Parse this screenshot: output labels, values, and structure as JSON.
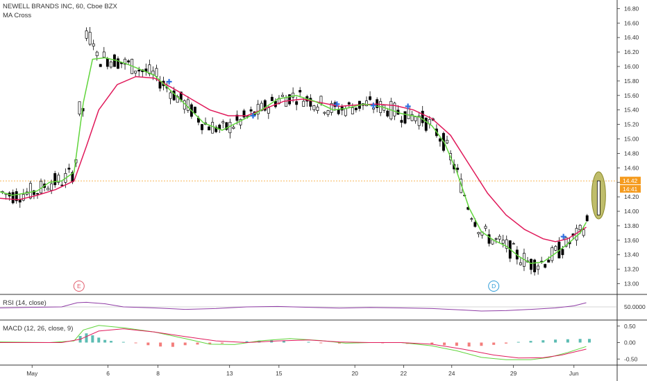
{
  "chart_data": {
    "type": "candlestick",
    "title": "NEWELL BRANDS INC, 60, Cboe BZX",
    "indicator_label": "MA Cross",
    "x_tick_labels": [
      "May",
      "6",
      "8",
      "13",
      "15",
      "20",
      "22",
      "24",
      "29",
      "Jun"
    ],
    "price_ticks": [
      "16.80",
      "16.60",
      "16.40",
      "16.20",
      "16.00",
      "15.80",
      "15.60",
      "15.40",
      "15.20",
      "15.00",
      "14.80",
      "14.60",
      "14.40",
      "14.20",
      "14.00",
      "13.80",
      "13.60",
      "13.40",
      "13.20",
      "13.00"
    ],
    "ylim": [
      12.9,
      16.88
    ],
    "last_price_label": "14.42",
    "time_label": "14:41",
    "grid": false,
    "colors": {
      "up": "#ffffff",
      "down": "#000000",
      "fast_ma": "#5fd43a",
      "slow_ma": "#e0195a",
      "cross_marker": "#2f6fe0",
      "rsi_line": "#8e3ba5",
      "macd_line": "#5fd43a",
      "signal_line": "#e0195a",
      "last_price": "#f59b1e",
      "highlight": "#aaa73a"
    },
    "events": [
      {
        "label": "E",
        "color": "#e05a6a",
        "x": 0.128
      },
      {
        "label": "D",
        "color": "#2d9cd8",
        "x": 0.8
      }
    ],
    "fast_ma": [
      [
        0,
        14.27
      ],
      [
        0.02,
        14.22
      ],
      [
        0.04,
        14.25
      ],
      [
        0.06,
        14.28
      ],
      [
        0.08,
        14.4
      ],
      [
        0.1,
        14.42
      ],
      [
        0.12,
        14.54
      ],
      [
        0.135,
        15.5
      ],
      [
        0.15,
        16.1
      ],
      [
        0.17,
        16.12
      ],
      [
        0.19,
        16.08
      ],
      [
        0.21,
        16.02
      ],
      [
        0.23,
        15.95
      ],
      [
        0.25,
        15.88
      ],
      [
        0.27,
        15.72
      ],
      [
        0.3,
        15.48
      ],
      [
        0.33,
        15.22
      ],
      [
        0.36,
        15.12
      ],
      [
        0.39,
        15.25
      ],
      [
        0.42,
        15.38
      ],
      [
        0.45,
        15.55
      ],
      [
        0.48,
        15.6
      ],
      [
        0.51,
        15.52
      ],
      [
        0.54,
        15.4
      ],
      [
        0.56,
        15.42
      ],
      [
        0.59,
        15.48
      ],
      [
        0.62,
        15.44
      ],
      [
        0.65,
        15.35
      ],
      [
        0.68,
        15.3
      ],
      [
        0.7,
        15.18
      ],
      [
        0.72,
        14.95
      ],
      [
        0.74,
        14.55
      ],
      [
        0.76,
        14.05
      ],
      [
        0.78,
        13.72
      ],
      [
        0.8,
        13.6
      ],
      [
        0.82,
        13.52
      ],
      [
        0.84,
        13.38
      ],
      [
        0.86,
        13.28
      ],
      [
        0.88,
        13.3
      ],
      [
        0.9,
        13.42
      ],
      [
        0.92,
        13.55
      ],
      [
        0.94,
        13.7
      ],
      [
        0.95,
        13.85
      ]
    ],
    "slow_ma": [
      [
        0,
        14.18
      ],
      [
        0.03,
        14.16
      ],
      [
        0.06,
        14.22
      ],
      [
        0.09,
        14.3
      ],
      [
        0.12,
        14.42
      ],
      [
        0.14,
        14.9
      ],
      [
        0.16,
        15.4
      ],
      [
        0.19,
        15.75
      ],
      [
        0.22,
        15.86
      ],
      [
        0.25,
        15.84
      ],
      [
        0.28,
        15.7
      ],
      [
        0.31,
        15.55
      ],
      [
        0.34,
        15.4
      ],
      [
        0.37,
        15.32
      ],
      [
        0.4,
        15.32
      ],
      [
        0.43,
        15.42
      ],
      [
        0.46,
        15.52
      ],
      [
        0.49,
        15.55
      ],
      [
        0.52,
        15.5
      ],
      [
        0.55,
        15.45
      ],
      [
        0.58,
        15.47
      ],
      [
        0.61,
        15.48
      ],
      [
        0.64,
        15.46
      ],
      [
        0.67,
        15.4
      ],
      [
        0.7,
        15.28
      ],
      [
        0.73,
        15.05
      ],
      [
        0.76,
        14.65
      ],
      [
        0.79,
        14.25
      ],
      [
        0.82,
        13.95
      ],
      [
        0.85,
        13.75
      ],
      [
        0.88,
        13.62
      ],
      [
        0.9,
        13.58
      ],
      [
        0.92,
        13.62
      ],
      [
        0.95,
        13.78
      ]
    ],
    "crosses": [
      [
        0.274,
        15.79
      ],
      [
        0.41,
        15.32
      ],
      [
        0.546,
        15.48
      ],
      [
        0.605,
        15.46
      ],
      [
        0.661,
        15.45
      ],
      [
        0.913,
        13.65
      ]
    ],
    "candles_note": "OHLC approximated from visual",
    "rsi": {
      "label": "RSI (14, close)",
      "level_label": "50.0000",
      "values": [
        [
          0,
          0.45
        ],
        [
          0.05,
          0.48
        ],
        [
          0.1,
          0.5
        ],
        [
          0.125,
          0.7
        ],
        [
          0.14,
          0.72
        ],
        [
          0.17,
          0.65
        ],
        [
          0.2,
          0.5
        ],
        [
          0.25,
          0.45
        ],
        [
          0.3,
          0.38
        ],
        [
          0.35,
          0.42
        ],
        [
          0.4,
          0.5
        ],
        [
          0.45,
          0.52
        ],
        [
          0.5,
          0.48
        ],
        [
          0.55,
          0.44
        ],
        [
          0.6,
          0.47
        ],
        [
          0.65,
          0.45
        ],
        [
          0.7,
          0.42
        ],
        [
          0.75,
          0.35
        ],
        [
          0.78,
          0.3
        ],
        [
          0.82,
          0.32
        ],
        [
          0.86,
          0.38
        ],
        [
          0.9,
          0.45
        ],
        [
          0.93,
          0.55
        ],
        [
          0.95,
          0.7
        ]
      ]
    },
    "macd": {
      "label": "MACD (12, 26, close, 9)",
      "ticks": [
        "0.50",
        "0.00",
        "-0.50"
      ],
      "macd_line": [
        [
          0,
          0.02
        ],
        [
          0.08,
          0.0
        ],
        [
          0.12,
          0.05
        ],
        [
          0.135,
          0.38
        ],
        [
          0.16,
          0.52
        ],
        [
          0.2,
          0.45
        ],
        [
          0.25,
          0.32
        ],
        [
          0.3,
          0.12
        ],
        [
          0.34,
          -0.05
        ],
        [
          0.38,
          -0.06
        ],
        [
          0.42,
          0.05
        ],
        [
          0.47,
          0.12
        ],
        [
          0.52,
          0.06
        ],
        [
          0.56,
          -0.02
        ],
        [
          0.6,
          0.0
        ],
        [
          0.65,
          0.0
        ],
        [
          0.7,
          -0.1
        ],
        [
          0.74,
          -0.25
        ],
        [
          0.78,
          -0.45
        ],
        [
          0.82,
          -0.52
        ],
        [
          0.86,
          -0.52
        ],
        [
          0.89,
          -0.45
        ],
        [
          0.92,
          -0.3
        ],
        [
          0.95,
          -0.12
        ]
      ],
      "signal_line": [
        [
          0,
          0.0
        ],
        [
          0.1,
          0.0
        ],
        [
          0.13,
          0.1
        ],
        [
          0.16,
          0.35
        ],
        [
          0.2,
          0.42
        ],
        [
          0.25,
          0.32
        ],
        [
          0.3,
          0.18
        ],
        [
          0.35,
          0.05
        ],
        [
          0.4,
          0.0
        ],
        [
          0.45,
          0.05
        ],
        [
          0.5,
          0.08
        ],
        [
          0.55,
          0.02
        ],
        [
          0.6,
          0.0
        ],
        [
          0.65,
          0.0
        ],
        [
          0.7,
          -0.05
        ],
        [
          0.75,
          -0.2
        ],
        [
          0.8,
          -0.38
        ],
        [
          0.84,
          -0.47
        ],
        [
          0.88,
          -0.46
        ],
        [
          0.91,
          -0.38
        ],
        [
          0.95,
          -0.2
        ]
      ],
      "hist": [
        [
          0.13,
          0.2
        ],
        [
          0.14,
          0.28
        ],
        [
          0.15,
          0.22
        ],
        [
          0.16,
          0.15
        ],
        [
          0.17,
          0.08
        ],
        [
          0.18,
          0.05
        ],
        [
          0.2,
          0.02
        ],
        [
          0.22,
          -0.02
        ],
        [
          0.24,
          -0.08
        ],
        [
          0.26,
          -0.12
        ],
        [
          0.28,
          -0.13
        ],
        [
          0.3,
          -0.08
        ],
        [
          0.32,
          -0.06
        ],
        [
          0.34,
          -0.05
        ],
        [
          0.36,
          -0.03
        ],
        [
          0.4,
          0.04
        ],
        [
          0.42,
          0.06
        ],
        [
          0.44,
          0.07
        ],
        [
          0.46,
          0.05
        ],
        [
          0.5,
          0.02
        ],
        [
          0.52,
          -0.02
        ],
        [
          0.55,
          -0.03
        ],
        [
          0.58,
          -0.02
        ],
        [
          0.62,
          -0.02
        ],
        [
          0.66,
          -0.04
        ],
        [
          0.7,
          -0.06
        ],
        [
          0.72,
          -0.08
        ],
        [
          0.74,
          -0.1
        ],
        [
          0.76,
          -0.12
        ],
        [
          0.78,
          -0.1
        ],
        [
          0.8,
          -0.07
        ],
        [
          0.82,
          -0.03
        ],
        [
          0.84,
          0.02
        ],
        [
          0.86,
          0.05
        ],
        [
          0.88,
          0.07
        ],
        [
          0.9,
          0.09
        ],
        [
          0.92,
          0.1
        ],
        [
          0.94,
          0.11
        ],
        [
          0.955,
          0.11
        ]
      ]
    }
  }
}
